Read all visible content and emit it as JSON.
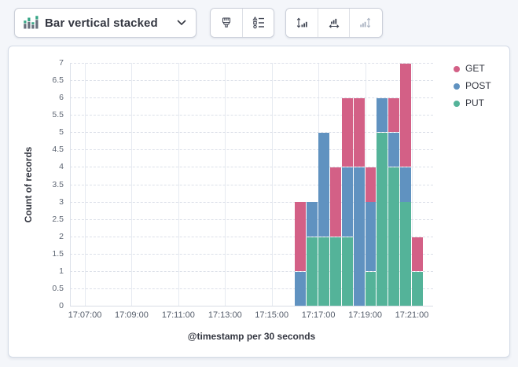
{
  "app": {
    "background": "#F4F6FA",
    "panel_background": "#FFFFFF",
    "panel_border": "#D3DAE6"
  },
  "toolbar": {
    "chart_type": {
      "label": "Bar vertical stacked",
      "icon": "bar-vertical-stacked-icon",
      "chevron": "chevron-down-icon"
    },
    "style_buttons": [
      {
        "name": "visual-options",
        "icon": "paintbrush-icon",
        "disabled": false
      },
      {
        "name": "legend-settings",
        "icon": "legend-icon",
        "disabled": false
      }
    ],
    "axis_buttons": [
      {
        "name": "left-axis",
        "icon": "axis-left-icon",
        "disabled": false
      },
      {
        "name": "bottom-axis",
        "icon": "axis-bottom-icon",
        "disabled": false
      },
      {
        "name": "right-axis",
        "icon": "axis-right-icon",
        "disabled": true
      }
    ]
  },
  "chart_data": {
    "type": "bar",
    "stacked": true,
    "orientation": "vertical",
    "title": "",
    "ylabel": "Count of records",
    "xlabel": "@timestamp per 30 seconds",
    "ylim": [
      0,
      7
    ],
    "yticks": [
      "0",
      "0.5",
      "1",
      "1.5",
      "2",
      "2.5",
      "3",
      "3.5",
      "4",
      "4.5",
      "5",
      "5.5",
      "6",
      "6.5",
      "7"
    ],
    "xticks": [
      "17:07:00",
      "17:09:00",
      "17:11:00",
      "17:13:00",
      "17:15:00",
      "17:17:00",
      "17:19:00",
      "17:21:00"
    ],
    "interval_seconds": 30,
    "x": [
      "17:16:00",
      "17:16:30",
      "17:17:00",
      "17:17:30",
      "17:18:00",
      "17:18:30",
      "17:19:00",
      "17:19:30",
      "17:20:00",
      "17:20:30",
      "17:21:00"
    ],
    "series": [
      {
        "name": "GET",
        "color": "#D36086",
        "values": [
          2,
          0,
          0,
          2,
          2,
          2,
          1,
          0,
          1,
          3,
          1
        ]
      },
      {
        "name": "POST",
        "color": "#6092C0",
        "values": [
          1,
          1,
          3,
          0,
          2,
          4,
          2,
          1,
          1,
          1,
          0
        ]
      },
      {
        "name": "PUT",
        "color": "#54B399",
        "values": [
          0,
          2,
          2,
          2,
          2,
          0,
          1,
          5,
          4,
          3,
          1
        ]
      }
    ],
    "stack_order_bottom_to_top": [
      "PUT",
      "POST",
      "GET"
    ],
    "legend_position": "top-right",
    "grid": {
      "horizontal": "dashed",
      "vertical": "solid"
    }
  }
}
